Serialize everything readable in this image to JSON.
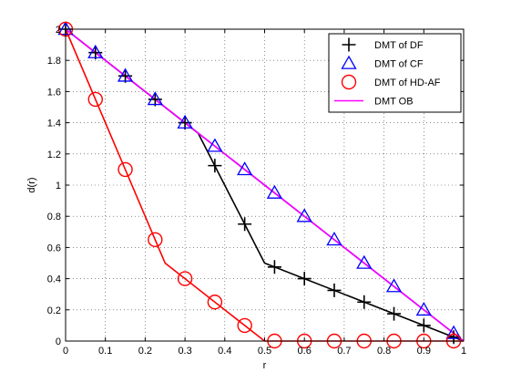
{
  "chart_data": {
    "type": "line",
    "title": "",
    "xlabel": "r",
    "ylabel": "d(r)",
    "xlim": [
      0,
      1
    ],
    "ylim": [
      0,
      2
    ],
    "grid": true,
    "legend_position": "top-right",
    "x_ticks": [
      0,
      0.1,
      0.2,
      0.3,
      0.4,
      0.5,
      0.6,
      0.7,
      0.8,
      0.9,
      1
    ],
    "x_tick_labels": [
      "0",
      "0.1",
      "0.2",
      "0.3",
      "0.4",
      "0.5",
      "0.6",
      "0.7",
      "0.8",
      "0.9",
      "1"
    ],
    "y_ticks": [
      0,
      0.2,
      0.4,
      0.6,
      0.8,
      1,
      1.2,
      1.4,
      1.6,
      1.8,
      2
    ],
    "y_tick_labels": [
      "0",
      "0.2",
      "0.4",
      "0.6",
      "0.8",
      "1",
      "1.2",
      "1.4",
      "1.6",
      "1.8",
      "2"
    ],
    "series": [
      {
        "name": "DMT of DF",
        "color": "#000000",
        "marker": "plus",
        "line": [
          [
            0,
            2
          ],
          [
            0.333,
            1.333
          ],
          [
            0.5,
            0.5
          ],
          [
            1,
            0
          ]
        ],
        "markers": [
          [
            0,
            2
          ],
          [
            0.075,
            1.85
          ],
          [
            0.15,
            1.7
          ],
          [
            0.225,
            1.55
          ],
          [
            0.3,
            1.4
          ],
          [
            0.375,
            1.125
          ],
          [
            0.45,
            0.75
          ],
          [
            0.525,
            0.475
          ],
          [
            0.6,
            0.4
          ],
          [
            0.675,
            0.325
          ],
          [
            0.75,
            0.25
          ],
          [
            0.825,
            0.175
          ],
          [
            0.9,
            0.1
          ],
          [
            0.975,
            0.025
          ]
        ]
      },
      {
        "name": "DMT of CF",
        "color": "#0000ff",
        "marker": "triangle",
        "line": [
          [
            0,
            2
          ],
          [
            1,
            0
          ]
        ],
        "markers": [
          [
            0,
            2
          ],
          [
            0.075,
            1.85
          ],
          [
            0.15,
            1.7
          ],
          [
            0.225,
            1.55
          ],
          [
            0.3,
            1.4
          ],
          [
            0.375,
            1.25
          ],
          [
            0.45,
            1.1
          ],
          [
            0.525,
            0.95
          ],
          [
            0.6,
            0.8
          ],
          [
            0.675,
            0.65
          ],
          [
            0.75,
            0.5
          ],
          [
            0.825,
            0.35
          ],
          [
            0.9,
            0.2
          ],
          [
            0.975,
            0.05
          ]
        ]
      },
      {
        "name": "DMT of HD-AF",
        "color": "#ff0000",
        "marker": "circle",
        "line": [
          [
            0,
            2
          ],
          [
            0.25,
            0.5
          ],
          [
            0.5,
            0
          ],
          [
            1,
            0
          ]
        ],
        "markers": [
          [
            0,
            2
          ],
          [
            0.075,
            1.55
          ],
          [
            0.15,
            1.1
          ],
          [
            0.225,
            0.65
          ],
          [
            0.3,
            0.4
          ],
          [
            0.375,
            0.25
          ],
          [
            0.45,
            0.1
          ],
          [
            0.525,
            0
          ],
          [
            0.6,
            0
          ],
          [
            0.675,
            0
          ],
          [
            0.75,
            0
          ],
          [
            0.825,
            0
          ],
          [
            0.9,
            0
          ],
          [
            0.975,
            0
          ]
        ]
      },
      {
        "name": "DMT OB",
        "color": "#ff00ff",
        "marker": "none",
        "line": [
          [
            0,
            2
          ],
          [
            1,
            0
          ]
        ],
        "markers": []
      }
    ]
  }
}
